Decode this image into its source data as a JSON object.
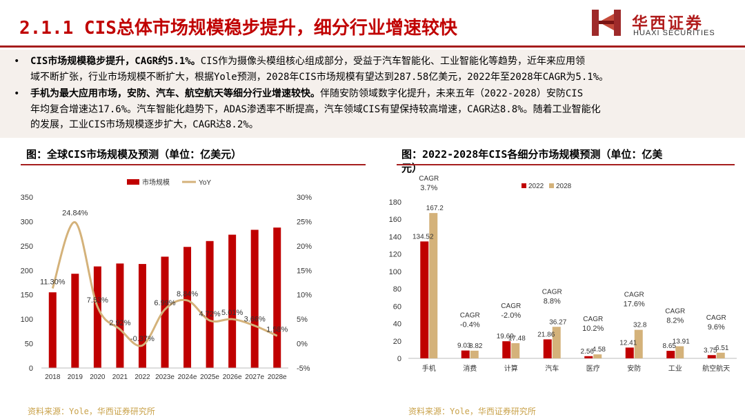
{
  "page": {
    "title": "2.1.1 CIS总体市场规模稳步提升，细分行业增速较快",
    "logo_cn": "华西证券",
    "logo_en": "HUAXI SECURITIES"
  },
  "bullets": [
    {
      "bold": "CIS市场规模稳步提升，CAGR约5.1%。",
      "text_lines": [
        "CIS作为摄像头模组核心组成部分，受益于汽车智能化、工业智能化等趋势，近年来应用领",
        "域不断扩张，行业市场规模不断扩大，根据Yole预测，2028年CIS市场规模有望达到287.58亿美元，2022年至2028年CAGR为5.1%。"
      ]
    },
    {
      "bold": "手机为最大应用市场，安防、汽车、航空航天等细分行业增速较快。",
      "text_lines": [
        "伴随安防领域数字化提升，未来五年（2022-2028）安防CIS",
        "年均复合增速达17.6%。汽车智能化趋势下，ADAS渗透率不断提高，汽车领域CIS有望保持较高增速，CAGR达8.8%。随着工业智能化",
        "的发展，工业CIS市场规模逐步扩大，CAGR达8.2%。"
      ]
    }
  ],
  "left_chart": {
    "title": "图：全球CIS市场规模及预测（单位：亿美元）",
    "source": "资料来源：Yole，华西证券研究所"
  },
  "right_chart": {
    "title_line1": "图：2022-2028年CIS各细分市场规模预测（单位：亿美",
    "title_line2": "元）",
    "source": "资料来源：Yole，华西证券研究所"
  },
  "chart_data": [
    {
      "type": "bar",
      "title": "图：全球CIS市场规模及预测（单位：亿美元）",
      "categories": [
        "2018",
        "2019",
        "2020",
        "2021",
        "2022",
        "2023e",
        "2024e",
        "2025e",
        "2026e",
        "2027e",
        "2028e"
      ],
      "series": [
        {
          "name": "市场规模",
          "type": "bar",
          "axis": "left",
          "color": "#c00000",
          "values": [
            155,
            193,
            208,
            214,
            213,
            228,
            248,
            260,
            273,
            283,
            287.58
          ]
        },
        {
          "name": "YoY",
          "type": "line",
          "axis": "right",
          "color": "#d4b27a",
          "values": [
            11.3,
            24.84,
            7.53,
            2.92,
            -0.37,
            6.99,
            8.84,
            4.72,
            5.01,
            3.66,
            1.58
          ],
          "labels": [
            "11.30%",
            "24.84%",
            "7.53%",
            "2.92%",
            "-0.37%",
            "6.99%",
            "8.84%",
            "4.72%",
            "5.01%",
            "3.66%",
            "1.58%"
          ]
        }
      ],
      "ylim": [
        0,
        350
      ],
      "yticks": [
        0,
        50,
        100,
        150,
        200,
        250,
        300,
        350
      ],
      "y2lim": [
        -5,
        30
      ],
      "y2ticks": [
        "-5%",
        "0%",
        "5%",
        "10%",
        "15%",
        "20%",
        "25%",
        "30%"
      ],
      "legend": "top"
    },
    {
      "type": "bar",
      "title": "图：2022-2028年CIS各细分市场规模预测（单位：亿美元）",
      "categories": [
        "手机",
        "消费",
        "计算",
        "汽车",
        "医疗",
        "安防",
        "工业",
        "航空航天"
      ],
      "series": [
        {
          "name": "2022",
          "color": "#c00000",
          "values": [
            134.52,
            9.03,
            19.69,
            21.86,
            2.56,
            12.41,
            8.65,
            3.75
          ],
          "labels": [
            "134.52",
            "9.03",
            "19.69",
            "21.86",
            "2.56",
            "12.41",
            "8.65",
            "3.75"
          ]
        },
        {
          "name": "2028",
          "color": "#d4b27a",
          "values": [
            167.2,
            8.82,
            17.48,
            36.27,
            4.58,
            32.8,
            13.91,
            6.51
          ],
          "labels": [
            "167.2",
            "8.82",
            "17.48",
            "36.27",
            "4.58",
            "32.8",
            "13.91",
            "6.51"
          ]
        }
      ],
      "cagr": [
        "CAGR 3.7%",
        "CAGR -0.4%",
        "CAGR -2.0%",
        "CAGR 8.8%",
        "CAGR 10.2%",
        "CAGR 17.6%",
        "CAGR 8.2%",
        "CAGR 9.6%"
      ],
      "ylim": [
        0,
        180
      ],
      "yticks": [
        0,
        20,
        40,
        60,
        80,
        100,
        120,
        140,
        160,
        180
      ],
      "legend": "top"
    }
  ]
}
